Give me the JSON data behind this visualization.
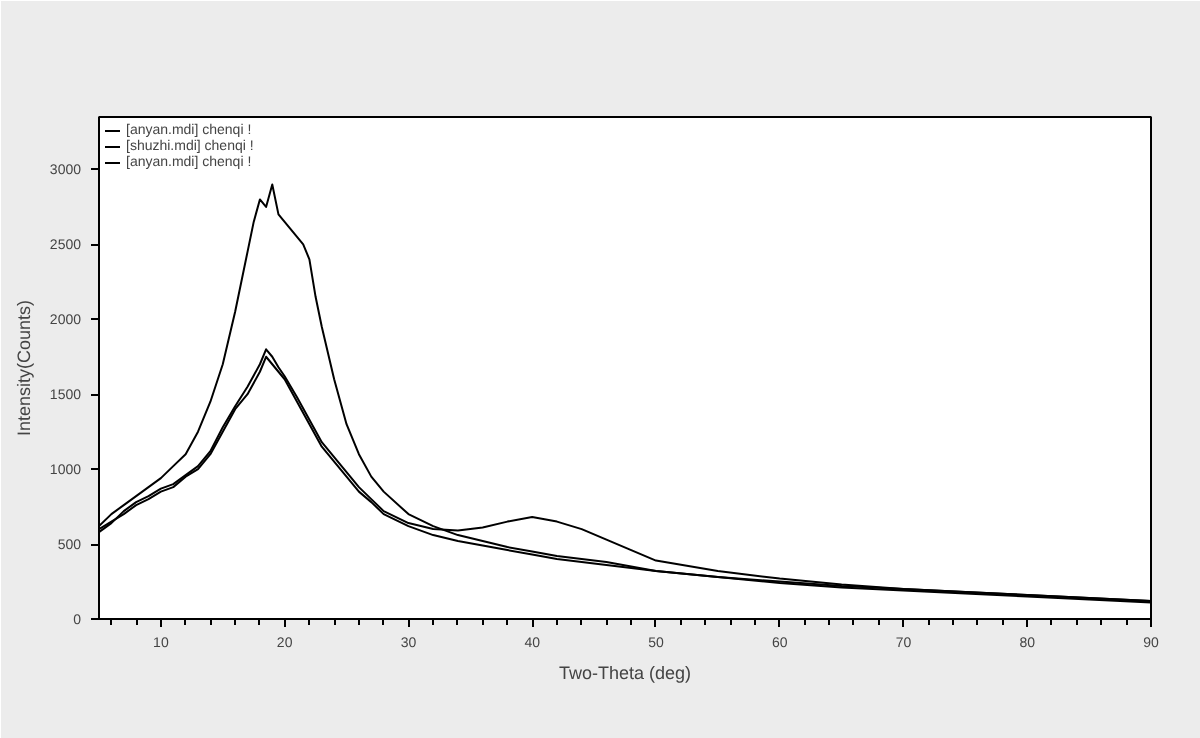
{
  "chart_data": {
    "type": "line",
    "xlabel": "Two-Theta (deg)",
    "ylabel": "Intensity(Counts)",
    "xlim": [
      5,
      90
    ],
    "ylim": [
      0,
      3350
    ],
    "xticks": [
      10,
      20,
      30,
      40,
      50,
      60,
      70,
      80,
      90
    ],
    "yticks": [
      0,
      500,
      1000,
      1500,
      2000,
      2500,
      3000
    ],
    "grid": false,
    "legend": "top left",
    "line_style": "solid",
    "series": [
      {
        "name": "[anyan.mdi] chenqi !",
        "color": "#000000",
        "x": [
          5,
          6,
          7,
          8,
          9,
          10,
          11,
          12,
          13,
          14,
          15,
          16,
          17,
          17.5,
          18,
          18.5,
          19,
          19.5,
          20,
          20.5,
          21,
          21.5,
          22,
          22.5,
          23,
          24,
          25,
          26,
          27,
          28,
          30,
          32,
          34,
          36,
          38,
          40,
          42,
          44,
          46,
          48,
          50,
          55,
          60,
          65,
          70,
          75,
          80,
          85,
          90
        ],
        "values": [
          620,
          700,
          760,
          820,
          880,
          940,
          1020,
          1100,
          1250,
          1450,
          1700,
          2050,
          2450,
          2650,
          2800,
          2750,
          2900,
          2700,
          2650,
          2600,
          2550,
          2500,
          2400,
          2150,
          1950,
          1600,
          1300,
          1100,
          950,
          850,
          700,
          620,
          560,
          520,
          480,
          450,
          420,
          400,
          380,
          350,
          320,
          280,
          240,
          210,
          190,
          170,
          150,
          130,
          110
        ]
      },
      {
        "name": "[shuzhi.mdi] chenqi !",
        "color": "#000000",
        "x": [
          5,
          6,
          7,
          8,
          9,
          10,
          11,
          12,
          13,
          14,
          15,
          16,
          17,
          18,
          18.5,
          19,
          19.5,
          20,
          21,
          22,
          23,
          24,
          25,
          26,
          27,
          28,
          30,
          32,
          34,
          36,
          38,
          40,
          42,
          44,
          46,
          48,
          50,
          55,
          60,
          65,
          70,
          75,
          80,
          85,
          90
        ],
        "values": [
          600,
          650,
          700,
          760,
          800,
          850,
          880,
          950,
          1000,
          1100,
          1250,
          1400,
          1500,
          1650,
          1750,
          1700,
          1650,
          1600,
          1450,
          1300,
          1150,
          1050,
          950,
          850,
          780,
          700,
          620,
          560,
          520,
          490,
          460,
          430,
          400,
          380,
          360,
          340,
          320,
          280,
          250,
          220,
          200,
          180,
          160,
          140,
          120
        ]
      },
      {
        "name": "[anyan.mdi] chenqi !",
        "color": "#000000",
        "x": [
          5,
          6,
          7,
          8,
          9,
          10,
          11,
          12,
          13,
          14,
          15,
          16,
          17,
          18,
          18.5,
          19,
          19.5,
          20,
          21,
          22,
          23,
          24,
          25,
          26,
          27,
          28,
          30,
          32,
          34,
          36,
          38,
          40,
          42,
          44,
          46,
          48,
          50,
          55,
          60,
          65,
          70,
          75,
          80,
          85,
          90
        ],
        "values": [
          580,
          640,
          720,
          780,
          820,
          870,
          900,
          960,
          1020,
          1120,
          1280,
          1420,
          1550,
          1700,
          1800,
          1750,
          1680,
          1620,
          1480,
          1330,
          1180,
          1080,
          980,
          880,
          800,
          720,
          640,
          600,
          590,
          610,
          650,
          680,
          650,
          600,
          530,
          460,
          390,
          320,
          270,
          230,
          200,
          180,
          160,
          140,
          120
        ]
      }
    ]
  }
}
